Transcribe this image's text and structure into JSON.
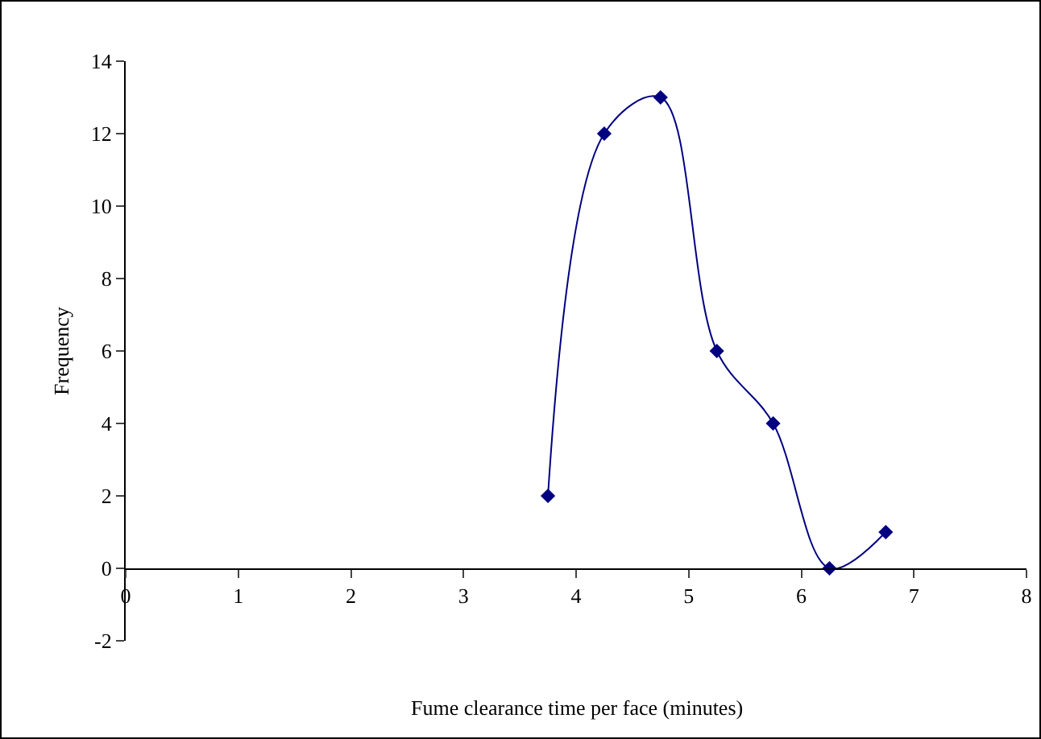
{
  "chart_data": {
    "type": "line",
    "xlabel": "Fume clearance time per face (minutes)",
    "ylabel": "Frequency",
    "x": [
      3.75,
      4.25,
      4.75,
      5.25,
      5.75,
      6.25,
      6.75
    ],
    "series": [
      {
        "color": "#000080",
        "values": [
          2,
          12,
          13,
          6,
          4,
          0,
          1
        ]
      }
    ],
    "xlim": [
      0,
      8
    ],
    "xticks": [
      0,
      1,
      2,
      3,
      4,
      5,
      6,
      7,
      8
    ],
    "ylim": [
      -2,
      14
    ],
    "yticks": [
      -2,
      0,
      2,
      4,
      6,
      8,
      10,
      12,
      14
    ],
    "grid": false,
    "marker": "diamond",
    "line_style": "solid"
  }
}
